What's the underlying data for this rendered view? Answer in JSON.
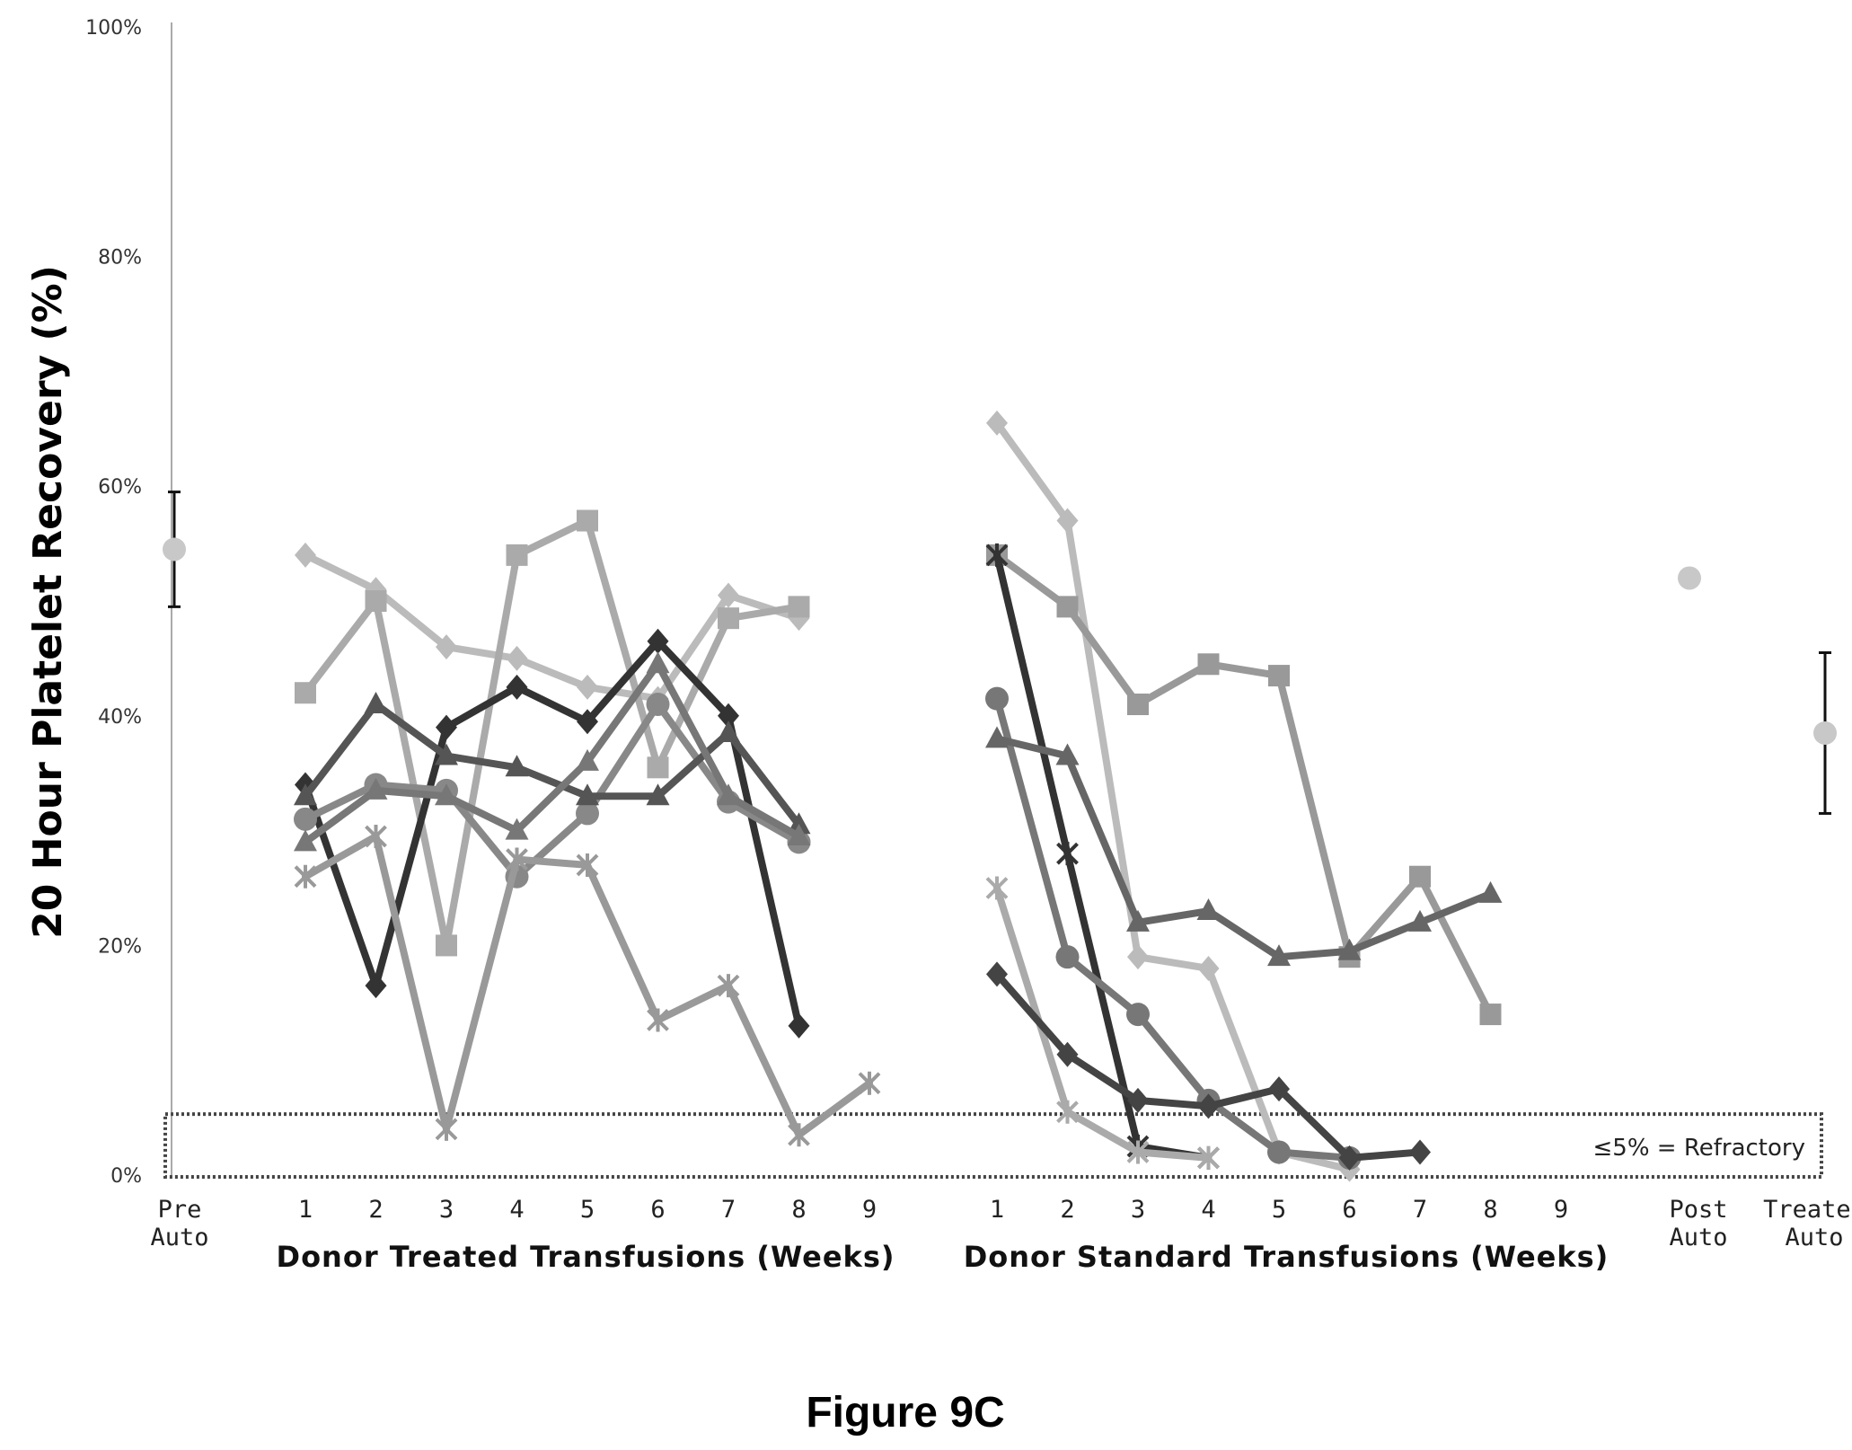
{
  "caption": "Figure 9C",
  "chart_data": {
    "type": "line",
    "ylabel": "20 Hour Platelet Recovery (%)",
    "ylim": [
      0,
      100
    ],
    "yticks": [
      "0%",
      "20%",
      "40%",
      "60%",
      "80%",
      "100%"
    ],
    "ytick_values": [
      0,
      20,
      40,
      60,
      80,
      100
    ],
    "groups": [
      {
        "name": "Donor Treated Transfusions (Weeks)",
        "ticks": [
          "1",
          "2",
          "3",
          "4",
          "5",
          "6",
          "7",
          "8",
          "9"
        ]
      },
      {
        "name": "Donor Standard Transfusions (Weeks)",
        "ticks": [
          "1",
          "2",
          "3",
          "4",
          "5",
          "6",
          "7",
          "8",
          "9"
        ]
      }
    ],
    "pre_auto": {
      "lines": [
        "Pre",
        "Auto"
      ],
      "value": 54.5,
      "err_low": 49.5,
      "err_high": 59.5
    },
    "post_auto": {
      "lines": [
        "Post",
        "Auto"
      ],
      "value": 52
    },
    "treated_auto": {
      "lines": [
        "Treated",
        "Auto"
      ],
      "value": 38.5,
      "err_low": 31.5,
      "err_high": 45.5
    },
    "refractory_annotation": "≤5% = Refractory",
    "refractory_threshold": 5,
    "treated_series": [
      {
        "marker": "diamond",
        "color": "#bbbbbb",
        "values": [
          54,
          51,
          46,
          45,
          42.5,
          41.5,
          50.5,
          48.5,
          null
        ]
      },
      {
        "marker": "square",
        "color": "#aaaaaa",
        "values": [
          42,
          50,
          20,
          54,
          57,
          35.5,
          48.5,
          49.5,
          null
        ]
      },
      {
        "marker": "diamond",
        "color": "#333333",
        "values": [
          34,
          16.5,
          39,
          42.5,
          39.5,
          46.5,
          40,
          13,
          null
        ]
      },
      {
        "marker": "circle",
        "color": "#888888",
        "values": [
          31,
          34,
          33.5,
          26,
          31.5,
          41,
          32.5,
          29,
          null
        ]
      },
      {
        "marker": "triangle",
        "color": "#555555",
        "values": [
          33,
          41,
          36.5,
          35.5,
          33,
          33,
          38.5,
          30.5,
          null
        ]
      },
      {
        "marker": "triangle",
        "color": "#777777",
        "values": [
          29,
          33.5,
          33,
          30,
          36,
          44.5,
          33,
          29.5,
          null
        ]
      },
      {
        "marker": "star",
        "color": "#999999",
        "values": [
          26,
          29.5,
          4,
          27.5,
          27,
          13.5,
          16.5,
          3.5,
          8
        ]
      }
    ],
    "standard_series": [
      {
        "marker": "diamond",
        "color": "#bbbbbb",
        "values": [
          65.5,
          57,
          19,
          18,
          2,
          0.5,
          null,
          null,
          null
        ]
      },
      {
        "marker": "square",
        "color": "#999999",
        "values": [
          54,
          49.5,
          41,
          44.5,
          43.5,
          19,
          26,
          14,
          null
        ]
      },
      {
        "marker": "star",
        "color": "#333333",
        "values": [
          54,
          28,
          2.5,
          1.5,
          null,
          null,
          null,
          null,
          null
        ]
      },
      {
        "marker": "circle",
        "color": "#777777",
        "values": [
          41.5,
          19,
          14,
          6.5,
          2,
          1.5,
          null,
          null,
          null
        ]
      },
      {
        "marker": "triangle",
        "color": "#666666",
        "values": [
          38,
          36.5,
          22,
          23,
          19,
          19.5,
          22,
          24.5,
          null
        ]
      },
      {
        "marker": "star",
        "color": "#aaaaaa",
        "values": [
          25,
          5.5,
          2,
          1.5,
          null,
          null,
          null,
          null,
          null
        ]
      },
      {
        "marker": "diamond",
        "color": "#444444",
        "values": [
          17.5,
          10.5,
          6.5,
          6,
          7.5,
          1.5,
          2,
          null,
          null
        ]
      }
    ]
  }
}
